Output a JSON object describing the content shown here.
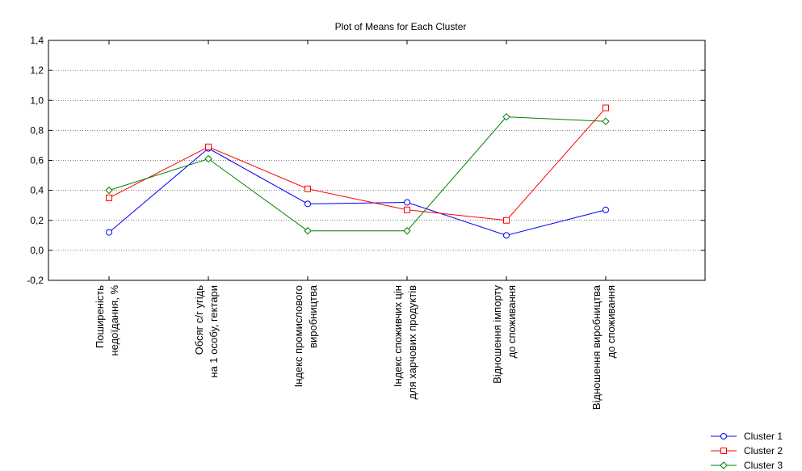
{
  "chart_data": {
    "type": "line",
    "title": "Plot of Means for Each Cluster",
    "xlabel": "",
    "ylabel": "",
    "categories": [
      [
        "Поширеність",
        "недоїдання, %"
      ],
      [
        "Обсяг с/г угідь",
        "на 1 особу, гектари"
      ],
      [
        "Індекс промислового",
        "виробництва"
      ],
      [
        "Індекс  споживчих цін",
        "для харчових продуктів"
      ],
      [
        "Відношення імпорту",
        "до споживання"
      ],
      [
        "Відношення  виробництва",
        "до споживання"
      ]
    ],
    "ylim": [
      -0.2,
      1.4
    ],
    "yticks": [
      -0.2,
      0.0,
      0.2,
      0.4,
      0.6,
      0.8,
      1.0,
      1.2,
      1.4
    ],
    "ytick_labels": [
      "-0,2",
      "0,0",
      "0,2",
      "0,4",
      "0,6",
      "0,8",
      "1,0",
      "1,2",
      "1,4"
    ],
    "grid": "horizontal dotted",
    "legend_position": "bottom-right",
    "series": [
      {
        "name": "Cluster  1",
        "color": "#0000ff",
        "marker": "circle",
        "values": [
          0.12,
          0.68,
          0.31,
          0.32,
          0.1,
          0.27
        ]
      },
      {
        "name": "Cluster  2",
        "color": "#ff0000",
        "marker": "square",
        "values": [
          0.35,
          0.69,
          0.41,
          0.27,
          0.2,
          0.95
        ]
      },
      {
        "name": "Cluster  3",
        "color": "#008000",
        "marker": "diamond",
        "values": [
          0.4,
          0.61,
          0.13,
          0.13,
          0.89,
          0.86
        ]
      }
    ]
  }
}
